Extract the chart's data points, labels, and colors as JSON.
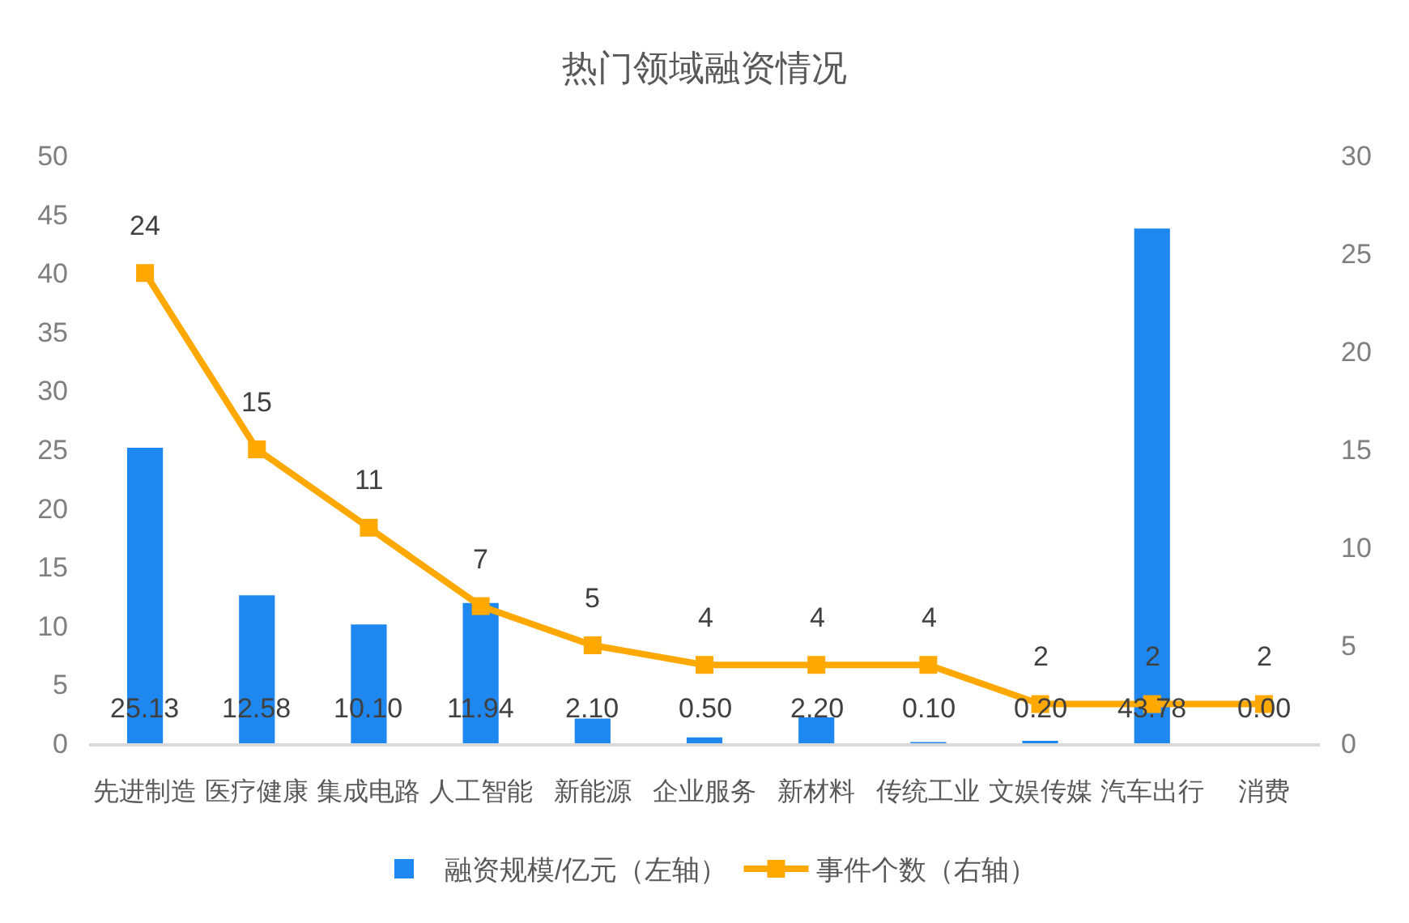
{
  "chart_data": {
    "type": "bar",
    "title": "热门领域融资情况",
    "categories": [
      "先进制造",
      "医疗健康",
      "集成电路",
      "人工智能",
      "新能源",
      "企业服务",
      "新材料",
      "传统工业",
      "文娱传媒",
      "汽车出行",
      "消费"
    ],
    "series": [
      {
        "name": "融资规模/亿元（左轴）",
        "color": "#1f88f0",
        "values": [
          25.13,
          12.58,
          10.1,
          11.94,
          2.1,
          0.5,
          2.2,
          0.1,
          0.2,
          43.78,
          0
        ],
        "value_labels": [
          "25.13",
          "12.58",
          "10.10",
          "11.94",
          "2.10",
          "0.50",
          "2.20",
          "0.10",
          "0.20",
          "43.78",
          "0.00"
        ]
      },
      {
        "name": "事件个数（右轴）",
        "type": "line",
        "axis": "y2",
        "color": "#ffa800",
        "values": [
          24,
          15,
          11,
          7,
          5,
          4,
          4,
          4,
          2,
          2,
          2
        ],
        "value_labels": [
          "24",
          "15",
          "11",
          "7",
          "5",
          "4",
          "4",
          "4",
          "2",
          "2",
          "2"
        ]
      }
    ],
    "ylim": [
      0,
      50
    ],
    "yticks": [
      0,
      5,
      10,
      15,
      20,
      25,
      30,
      35,
      40,
      45,
      50
    ],
    "y2lim": [
      0,
      30
    ],
    "y2ticks": [
      0,
      5,
      10,
      15,
      20,
      25,
      30
    ],
    "legend": "bottom",
    "marker": "square"
  }
}
